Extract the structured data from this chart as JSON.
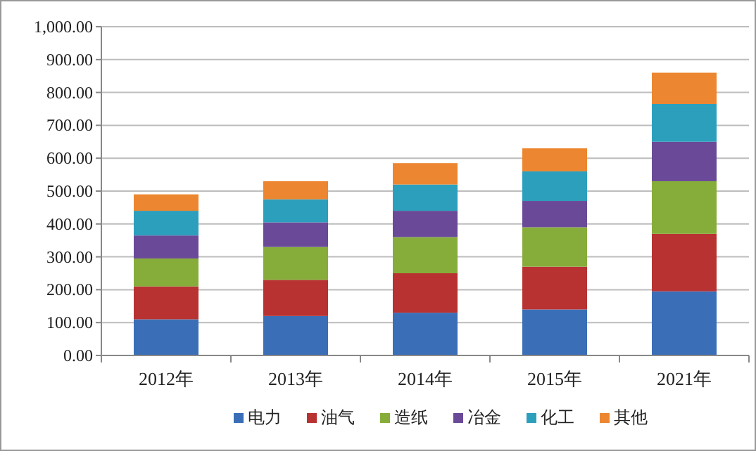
{
  "chart_data": {
    "type": "bar",
    "stacked": true,
    "categories": [
      "2012年",
      "2013年",
      "2014年",
      "2015年",
      "2021年"
    ],
    "series": [
      {
        "name": "电力",
        "color": "#3a6fb8",
        "values": [
          110,
          120,
          130,
          140,
          195
        ]
      },
      {
        "name": "油气",
        "color": "#b83232",
        "values": [
          100,
          110,
          120,
          130,
          175
        ]
      },
      {
        "name": "造纸",
        "color": "#86ad3a",
        "values": [
          85,
          100,
          110,
          120,
          160
        ]
      },
      {
        "name": "冶金",
        "color": "#6a4a98",
        "values": [
          70,
          75,
          80,
          80,
          120
        ]
      },
      {
        "name": "化工",
        "color": "#2c9fbd",
        "values": [
          75,
          70,
          80,
          90,
          115
        ]
      },
      {
        "name": "其他",
        "color": "#ec8630",
        "values": [
          50,
          55,
          65,
          70,
          95
        ]
      }
    ],
    "ylim": [
      0,
      1000
    ],
    "yticks": [
      {
        "value": 0,
        "label": "0.00"
      },
      {
        "value": 100,
        "label": "100.00"
      },
      {
        "value": 200,
        "label": "200.00"
      },
      {
        "value": 300,
        "label": "300.00"
      },
      {
        "value": 400,
        "label": "400.00"
      },
      {
        "value": 500,
        "label": "500.00"
      },
      {
        "value": 600,
        "label": "600.00"
      },
      {
        "value": 700,
        "label": "700.00"
      },
      {
        "value": 800,
        "label": "800.00"
      },
      {
        "value": 900,
        "label": "900.00"
      },
      {
        "value": 1000,
        "label": "1,000.00"
      }
    ],
    "grid": "y",
    "legend": "bottom"
  }
}
